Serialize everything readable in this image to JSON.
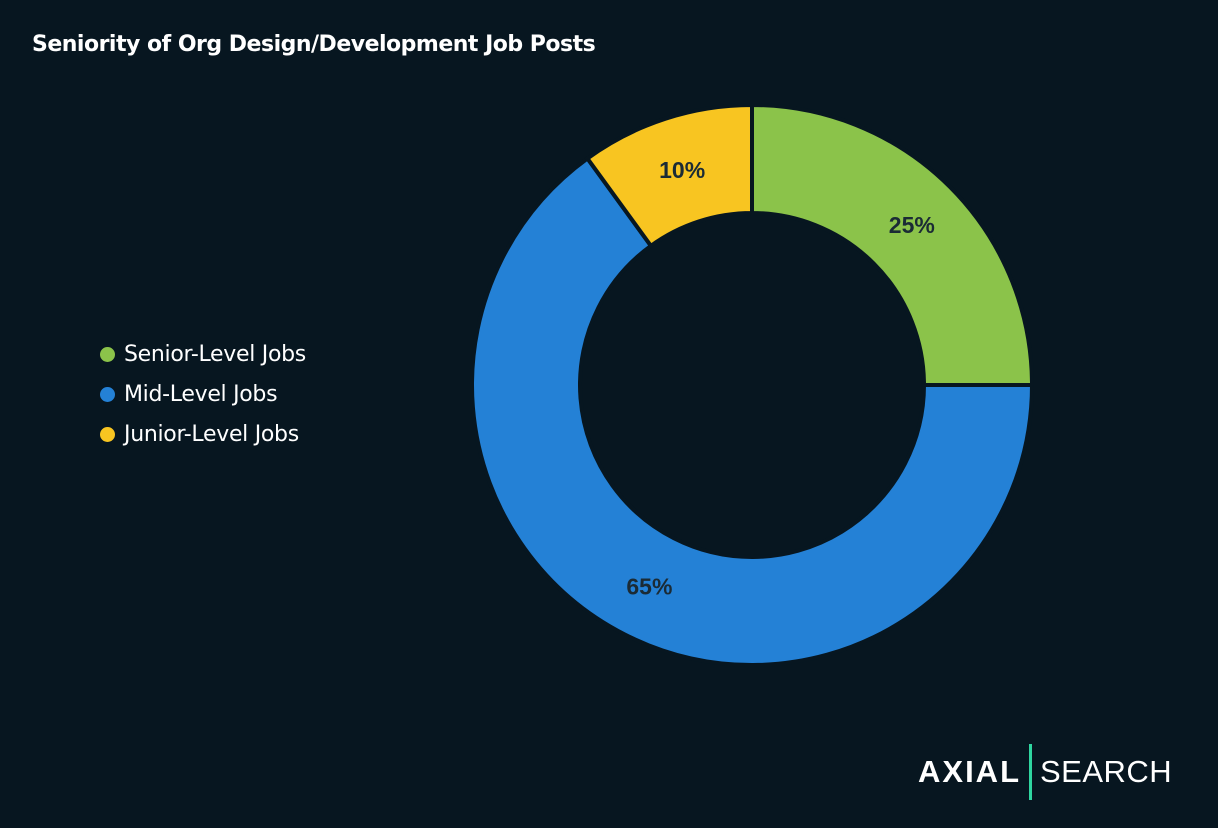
{
  "chart_data": {
    "type": "pie",
    "variant": "donut",
    "title": "Seniority of Org Design/Development Job Posts",
    "categories": [
      "Senior-Level Jobs",
      "Mid-Level Jobs",
      "Junior-Level Jobs"
    ],
    "values": [
      25,
      65,
      10
    ],
    "data_labels": [
      "25%",
      "65%",
      "10%"
    ],
    "colors": [
      "#8bc34a",
      "#2481d6",
      "#f8c521"
    ],
    "legend_position": "left"
  },
  "logo": {
    "brand": "AXIAL",
    "suffix": "SEARCH",
    "accent": "#2fd6a0"
  }
}
